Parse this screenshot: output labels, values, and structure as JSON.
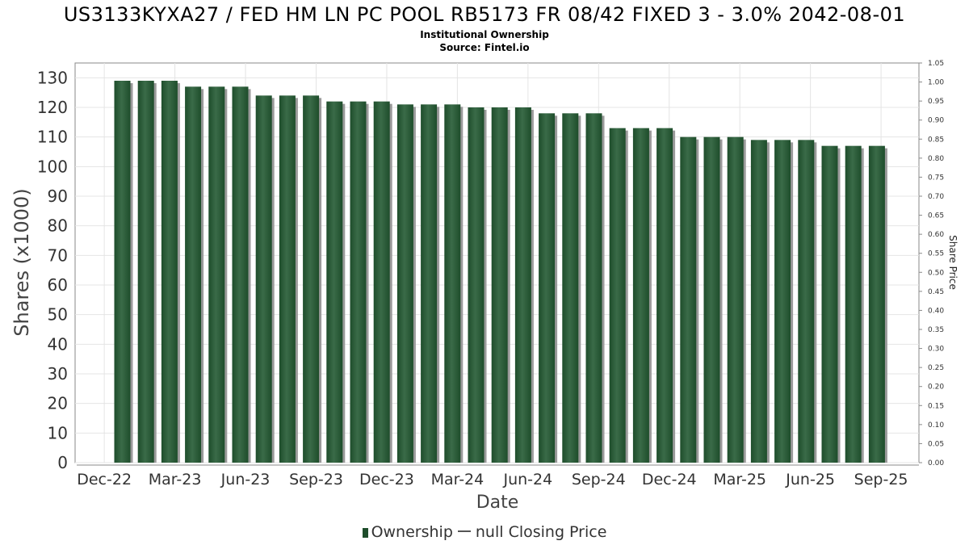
{
  "title": "US3133KYXA27 / FED HM LN PC POOL RB5173 FR 08/42 FIXED 3 - 3.0% 2042-08-01",
  "subtitle": "Institutional Ownership",
  "source": "Source: Fintel.io",
  "legend": {
    "ownership": "Ownership",
    "closing": "null Closing Price"
  },
  "colors": {
    "bar": "#1e4d2b",
    "bar_highlight": "#3a6b48",
    "bar_shadow": "#9a9a9a",
    "grid": "#e4e4e4"
  },
  "chart_data": {
    "type": "bar",
    "xlabel": "Date",
    "ylabel": "Shares (x1000)",
    "y2label": "Share Price",
    "ylim": [
      0,
      135
    ],
    "y2lim": [
      0,
      1.05
    ],
    "yticks": [
      0,
      10,
      20,
      30,
      40,
      50,
      60,
      70,
      80,
      90,
      100,
      110,
      120,
      130
    ],
    "y2ticks": [
      "0.00",
      "0.05",
      "0.10",
      "0.15",
      "0.20",
      "0.25",
      "0.30",
      "0.35",
      "0.40",
      "0.45",
      "0.50",
      "0.55",
      "0.60",
      "0.65",
      "0.70",
      "0.75",
      "0.80",
      "0.85",
      "0.90",
      "0.95",
      "1.00",
      "1.05"
    ],
    "xticks": [
      "Dec-22",
      "Mar-23",
      "Jun-23",
      "Sep-23",
      "Dec-23",
      "Mar-24",
      "Jun-24",
      "Sep-24",
      "Dec-24",
      "Mar-25",
      "Jun-25",
      "Sep-25"
    ],
    "grid": true,
    "legend_position": "bottom",
    "series": [
      {
        "name": "Ownership",
        "values": [
          129,
          129,
          129,
          127,
          127,
          127,
          124,
          124,
          124,
          122,
          122,
          122,
          121,
          121,
          121,
          120,
          120,
          120,
          118,
          118,
          118,
          113,
          113,
          113,
          110,
          110,
          110,
          109,
          109,
          109,
          107,
          107,
          107
        ]
      }
    ]
  }
}
